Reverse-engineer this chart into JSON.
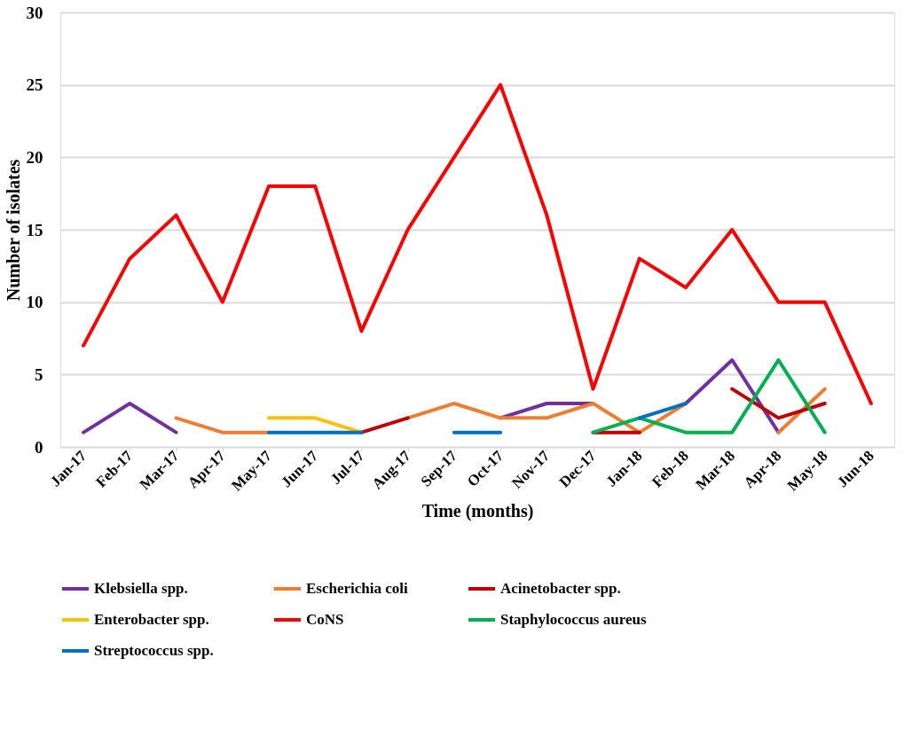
{
  "chart_data": {
    "type": "line",
    "xlabel": "Time (months)",
    "ylabel": "Number of isolates",
    "categories": [
      "Jan-17",
      "Feb-17",
      "Mar-17",
      "Apr-17",
      "May-17",
      "Jun-17",
      "Jul-17",
      "Aug-17",
      "Sep-17",
      "Oct-17",
      "Nov-17",
      "Dec-17",
      "Jan-18",
      "Feb-18",
      "Mar-18",
      "Apr-18",
      "May-18",
      "Jun-18"
    ],
    "ylim": [
      0,
      30
    ],
    "yticks": [
      0,
      5,
      10,
      15,
      20,
      25,
      30
    ],
    "grid": "y",
    "legend": "bottom",
    "marker": "none",
    "line_style": "solid",
    "series": [
      {
        "name": "Klebsiella spp.",
        "color": "#7030a0",
        "values": [
          1,
          3,
          1,
          null,
          null,
          null,
          null,
          null,
          null,
          2,
          3,
          3,
          null,
          3,
          6,
          1,
          null,
          null
        ]
      },
      {
        "name": "Escherichia coli",
        "color": "#ed7d31",
        "values": [
          null,
          null,
          2,
          1,
          1,
          null,
          null,
          2,
          3,
          2,
          2,
          3,
          1,
          3,
          null,
          1,
          4,
          null
        ]
      },
      {
        "name": "Acinetobacter spp.",
        "color": "#c00000",
        "values": [
          null,
          null,
          null,
          null,
          null,
          null,
          1,
          2,
          null,
          null,
          null,
          1,
          1,
          null,
          4,
          2,
          3,
          null
        ]
      },
      {
        "name": "Enterobacter spp.",
        "color": "#ffc000",
        "values": [
          null,
          null,
          null,
          null,
          2,
          2,
          1,
          null,
          null,
          null,
          null,
          null,
          null,
          null,
          null,
          null,
          null,
          null
        ]
      },
      {
        "name": "CoNS",
        "color": "#ff0000",
        "values": [
          7,
          13,
          16,
          10,
          18,
          18,
          8,
          15,
          20,
          25,
          16,
          4,
          13,
          11,
          15,
          10,
          10,
          3
        ]
      },
      {
        "name": "Staphylococcus aureus",
        "color": "#00b050",
        "values": [
          null,
          null,
          null,
          null,
          null,
          null,
          null,
          null,
          null,
          null,
          null,
          1,
          2,
          1,
          1,
          6,
          1,
          null
        ]
      },
      {
        "name": "Streptococcus spp.",
        "color": "#0070c0",
        "values": [
          null,
          null,
          null,
          null,
          1,
          1,
          1,
          null,
          1,
          1,
          null,
          null,
          2,
          3,
          null,
          null,
          null,
          null
        ]
      }
    ]
  }
}
